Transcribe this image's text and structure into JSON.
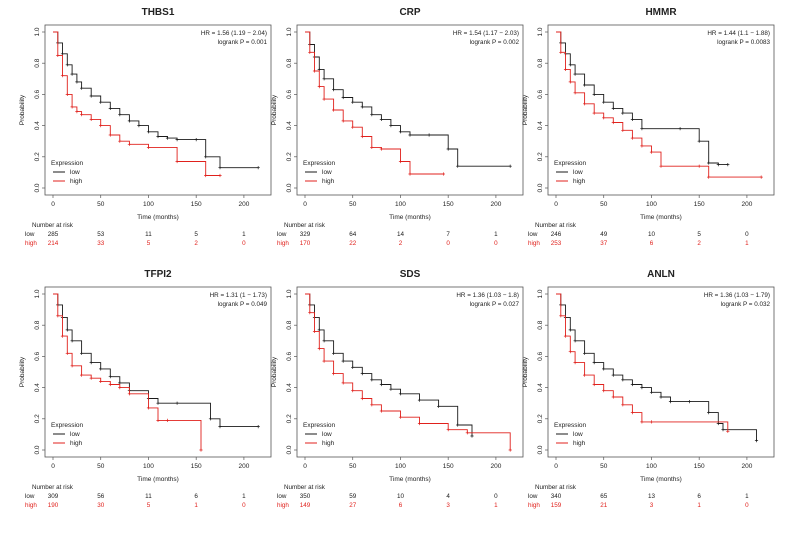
{
  "colors": {
    "low": "#1a1a1a",
    "high": "#e0211c",
    "frame": "#555555",
    "text": "#222222"
  },
  "chart_data": [
    {
      "type": "line",
      "subtype": "kaplan-meier",
      "title": "THBS1",
      "xlabel": "Time (months)",
      "ylabel": "Probability",
      "xlim": [
        0,
        220
      ],
      "ylim": [
        0,
        1
      ],
      "xticks": [
        "0",
        "50",
        "100",
        "150",
        "200"
      ],
      "yticks": [
        "0.0",
        "0.2",
        "0.4",
        "0.6",
        "0.8",
        "1.0"
      ],
      "hr_text": "HR = 1.56 (1.19 − 2.04)",
      "logrank_text": "logrank P = 0.001",
      "legend_title": "Expression",
      "series": [
        {
          "name": "low",
          "color": "#1a1a1a",
          "x": [
            0,
            5,
            10,
            15,
            20,
            25,
            30,
            40,
            50,
            60,
            70,
            80,
            90,
            100,
            110,
            120,
            130,
            150,
            160,
            175,
            215
          ],
          "y": [
            1,
            0.93,
            0.86,
            0.79,
            0.73,
            0.68,
            0.64,
            0.59,
            0.55,
            0.51,
            0.47,
            0.43,
            0.4,
            0.36,
            0.33,
            0.32,
            0.31,
            0.31,
            0.2,
            0.13,
            0.13
          ]
        },
        {
          "name": "high",
          "color": "#e0211c",
          "x": [
            0,
            5,
            10,
            15,
            20,
            25,
            30,
            40,
            50,
            60,
            70,
            80,
            100,
            130,
            160,
            175
          ],
          "y": [
            1,
            0.85,
            0.72,
            0.6,
            0.52,
            0.49,
            0.47,
            0.44,
            0.4,
            0.34,
            0.3,
            0.28,
            0.26,
            0.17,
            0.08,
            0.08
          ]
        }
      ],
      "risk_table": {
        "label": "Number at risk",
        "rows": [
          {
            "group": "low",
            "values": [
              "285",
              "53",
              "11",
              "5",
              "1"
            ]
          },
          {
            "group": "high",
            "values": [
              "214",
              "33",
              "5",
              "2",
              "0"
            ]
          }
        ]
      }
    },
    {
      "type": "line",
      "subtype": "kaplan-meier",
      "title": "CRP",
      "xlabel": "Time (months)",
      "ylabel": "Probability",
      "xlim": [
        0,
        220
      ],
      "ylim": [
        0,
        1
      ],
      "xticks": [
        "0",
        "50",
        "100",
        "150",
        "200"
      ],
      "yticks": [
        "0.0",
        "0.2",
        "0.4",
        "0.6",
        "0.8",
        "1.0"
      ],
      "hr_text": "HR = 1.54 (1.17 − 2.03)",
      "logrank_text": "logrank P = 0.002",
      "legend_title": "Expression",
      "series": [
        {
          "name": "low",
          "color": "#1a1a1a",
          "x": [
            0,
            5,
            10,
            15,
            20,
            30,
            40,
            50,
            60,
            70,
            80,
            90,
            100,
            110,
            130,
            150,
            160,
            215
          ],
          "y": [
            1,
            0.92,
            0.84,
            0.76,
            0.7,
            0.63,
            0.58,
            0.55,
            0.52,
            0.47,
            0.44,
            0.4,
            0.36,
            0.34,
            0.34,
            0.25,
            0.14,
            0.14
          ]
        },
        {
          "name": "high",
          "color": "#e0211c",
          "x": [
            0,
            5,
            10,
            15,
            20,
            30,
            40,
            50,
            60,
            70,
            80,
            100,
            110,
            145
          ],
          "y": [
            1,
            0.87,
            0.75,
            0.65,
            0.57,
            0.5,
            0.43,
            0.39,
            0.33,
            0.26,
            0.25,
            0.17,
            0.09,
            0.09
          ]
        }
      ],
      "risk_table": {
        "label": "Number at risk",
        "rows": [
          {
            "group": "low",
            "values": [
              "329",
              "64",
              "14",
              "7",
              "1"
            ]
          },
          {
            "group": "high",
            "values": [
              "170",
              "22",
              "2",
              "0",
              "0"
            ]
          }
        ]
      }
    },
    {
      "type": "line",
      "subtype": "kaplan-meier",
      "title": "HMMR",
      "xlabel": "Time (months)",
      "ylabel": "Probability",
      "xlim": [
        0,
        220
      ],
      "ylim": [
        0,
        1
      ],
      "xticks": [
        "0",
        "50",
        "100",
        "150",
        "200"
      ],
      "yticks": [
        "0.0",
        "0.2",
        "0.4",
        "0.6",
        "0.8",
        "1.0"
      ],
      "hr_text": "HR = 1.44 (1.1 − 1.88)",
      "logrank_text": "logrank P = 0.0083",
      "legend_title": "Expression",
      "series": [
        {
          "name": "low",
          "color": "#1a1a1a",
          "x": [
            0,
            5,
            10,
            15,
            20,
            30,
            40,
            50,
            60,
            70,
            80,
            90,
            130,
            150,
            160,
            170,
            180
          ],
          "y": [
            1,
            0.93,
            0.86,
            0.79,
            0.73,
            0.66,
            0.6,
            0.55,
            0.51,
            0.48,
            0.44,
            0.38,
            0.38,
            0.3,
            0.16,
            0.15,
            0.15
          ]
        },
        {
          "name": "high",
          "color": "#e0211c",
          "x": [
            0,
            5,
            10,
            15,
            20,
            30,
            40,
            50,
            60,
            70,
            80,
            90,
            100,
            110,
            150,
            160,
            215
          ],
          "y": [
            1,
            0.87,
            0.76,
            0.68,
            0.61,
            0.54,
            0.48,
            0.45,
            0.42,
            0.37,
            0.32,
            0.27,
            0.23,
            0.14,
            0.14,
            0.07,
            0.07
          ]
        }
      ],
      "risk_table": {
        "label": "Number at risk",
        "rows": [
          {
            "group": "low",
            "values": [
              "246",
              "49",
              "10",
              "5",
              "0"
            ]
          },
          {
            "group": "high",
            "values": [
              "253",
              "37",
              "6",
              "2",
              "1"
            ]
          }
        ]
      }
    },
    {
      "type": "line",
      "subtype": "kaplan-meier",
      "title": "TFPI2",
      "xlabel": "Time (months)",
      "ylabel": "Probability",
      "xlim": [
        0,
        220
      ],
      "ylim": [
        0,
        1
      ],
      "xticks": [
        "0",
        "50",
        "100",
        "150",
        "200"
      ],
      "yticks": [
        "0.0",
        "0.2",
        "0.4",
        "0.6",
        "0.8",
        "1.0"
      ],
      "hr_text": "HR = 1.31 (1 − 1.73)",
      "logrank_text": "logrank P = 0.049",
      "legend_title": "Expression",
      "series": [
        {
          "name": "low",
          "color": "#1a1a1a",
          "x": [
            0,
            5,
            10,
            15,
            20,
            30,
            40,
            50,
            60,
            70,
            80,
            100,
            110,
            130,
            165,
            175,
            215
          ],
          "y": [
            1,
            0.93,
            0.85,
            0.77,
            0.7,
            0.62,
            0.56,
            0.52,
            0.47,
            0.43,
            0.38,
            0.33,
            0.3,
            0.3,
            0.2,
            0.15,
            0.15
          ]
        },
        {
          "name": "high",
          "color": "#e0211c",
          "x": [
            0,
            5,
            10,
            15,
            20,
            30,
            40,
            50,
            60,
            70,
            80,
            100,
            110,
            120,
            155
          ],
          "y": [
            1,
            0.86,
            0.73,
            0.62,
            0.54,
            0.48,
            0.46,
            0.44,
            0.42,
            0.4,
            0.36,
            0.27,
            0.19,
            0.19,
            0.0
          ]
        }
      ],
      "risk_table": {
        "label": "Number at risk",
        "rows": [
          {
            "group": "low",
            "values": [
              "309",
              "56",
              "11",
              "6",
              "1"
            ]
          },
          {
            "group": "high",
            "values": [
              "190",
              "30",
              "5",
              "1",
              "0"
            ]
          }
        ]
      }
    },
    {
      "type": "line",
      "subtype": "kaplan-meier",
      "title": "SDS",
      "xlabel": "Time (months)",
      "ylabel": "Probability",
      "xlim": [
        0,
        220
      ],
      "ylim": [
        0,
        1
      ],
      "xticks": [
        "0",
        "50",
        "100",
        "150",
        "200"
      ],
      "yticks": [
        "0.0",
        "0.2",
        "0.4",
        "0.6",
        "0.8",
        "1.0"
      ],
      "hr_text": "HR = 1.36 (1.03 − 1.8)",
      "logrank_text": "logrank P = 0.027",
      "legend_title": "Expression",
      "series": [
        {
          "name": "low",
          "color": "#1a1a1a",
          "x": [
            0,
            5,
            10,
            15,
            20,
            30,
            40,
            50,
            60,
            70,
            80,
            90,
            100,
            120,
            140,
            160,
            175
          ],
          "y": [
            1,
            0.93,
            0.85,
            0.77,
            0.7,
            0.62,
            0.57,
            0.53,
            0.49,
            0.45,
            0.42,
            0.39,
            0.36,
            0.32,
            0.28,
            0.16,
            0.09
          ]
        },
        {
          "name": "high",
          "color": "#e0211c",
          "x": [
            0,
            5,
            10,
            15,
            20,
            30,
            40,
            50,
            60,
            70,
            80,
            100,
            120,
            150,
            170,
            215
          ],
          "y": [
            1,
            0.88,
            0.76,
            0.65,
            0.57,
            0.49,
            0.43,
            0.38,
            0.33,
            0.29,
            0.25,
            0.21,
            0.17,
            0.13,
            0.11,
            0.0
          ]
        }
      ],
      "risk_table": {
        "label": "Number at risk",
        "rows": [
          {
            "group": "low",
            "values": [
              "350",
              "59",
              "10",
              "4",
              "0"
            ]
          },
          {
            "group": "high",
            "values": [
              "149",
              "27",
              "6",
              "3",
              "1"
            ]
          }
        ]
      }
    },
    {
      "type": "line",
      "subtype": "kaplan-meier",
      "title": "ANLN",
      "xlabel": "Time (months)",
      "ylabel": "Probability",
      "xlim": [
        0,
        220
      ],
      "ylim": [
        0,
        1
      ],
      "xticks": [
        "0",
        "50",
        "100",
        "150",
        "200"
      ],
      "yticks": [
        "0.0",
        "0.2",
        "0.4",
        "0.6",
        "0.8",
        "1.0"
      ],
      "hr_text": "HR = 1.36 (1.03 − 1.79)",
      "logrank_text": "logrank P = 0.032",
      "legend_title": "Expression",
      "series": [
        {
          "name": "low",
          "color": "#1a1a1a",
          "x": [
            0,
            5,
            10,
            15,
            20,
            30,
            40,
            50,
            60,
            70,
            80,
            90,
            100,
            110,
            120,
            140,
            160,
            170,
            175,
            210
          ],
          "y": [
            1,
            0.93,
            0.85,
            0.77,
            0.7,
            0.62,
            0.56,
            0.52,
            0.48,
            0.45,
            0.42,
            0.4,
            0.37,
            0.34,
            0.31,
            0.31,
            0.24,
            0.17,
            0.13,
            0.06
          ]
        },
        {
          "name": "high",
          "color": "#e0211c",
          "x": [
            0,
            5,
            10,
            15,
            20,
            30,
            40,
            50,
            60,
            70,
            80,
            90,
            100,
            180
          ],
          "y": [
            1,
            0.86,
            0.73,
            0.63,
            0.56,
            0.48,
            0.42,
            0.38,
            0.34,
            0.29,
            0.24,
            0.18,
            0.18,
            0.12
          ]
        }
      ],
      "risk_table": {
        "label": "Number at risk",
        "rows": [
          {
            "group": "low",
            "values": [
              "340",
              "65",
              "13",
              "6",
              "1"
            ]
          },
          {
            "group": "high",
            "values": [
              "159",
              "21",
              "3",
              "1",
              "0"
            ]
          }
        ]
      }
    }
  ]
}
